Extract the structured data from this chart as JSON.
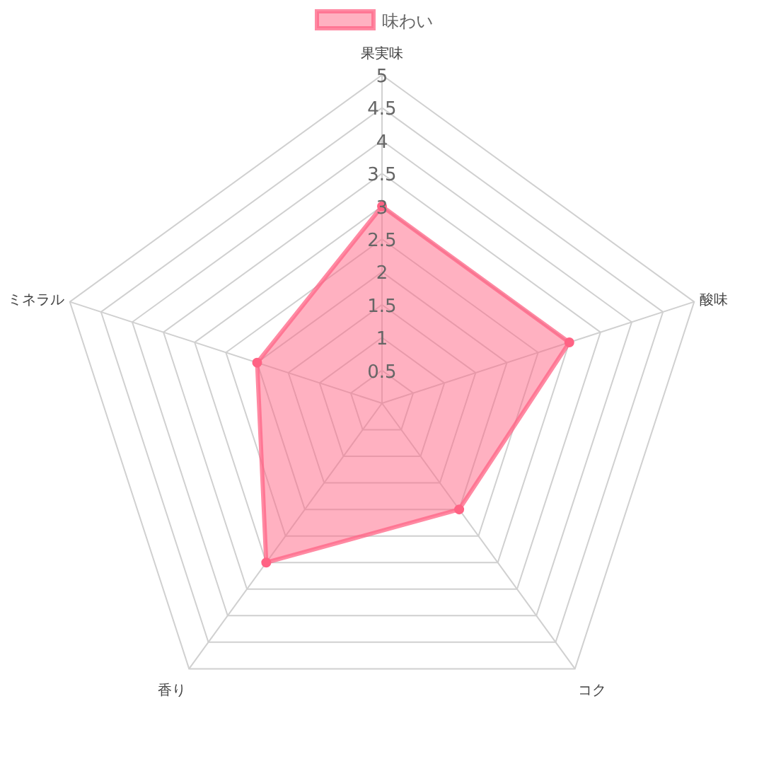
{
  "chart_data": {
    "type": "radar",
    "categories": [
      "果実味",
      "酸味",
      "コク",
      "香り",
      "ミネラル"
    ],
    "series": [
      {
        "name": "味わい",
        "color": "#ff6384",
        "values": [
          3,
          3,
          2,
          3,
          2
        ]
      }
    ],
    "ylim": [
      0,
      5
    ],
    "yticks": [
      0.5,
      1,
      1.5,
      2,
      2.5,
      3,
      3.5,
      4,
      4.5,
      5
    ],
    "grid": true,
    "legend": "top",
    "marker": "circle"
  }
}
